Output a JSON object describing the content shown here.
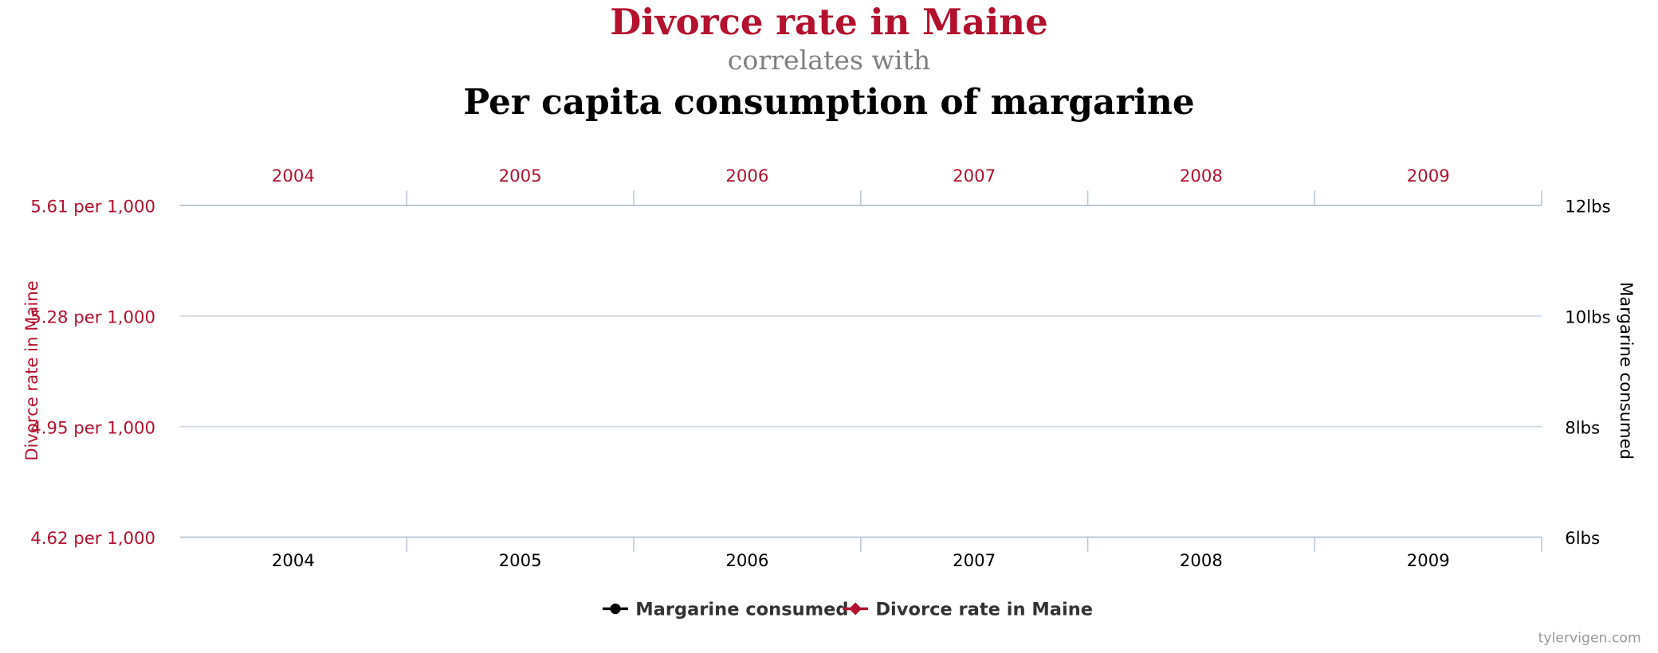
{
  "chart_data": {
    "type": "line",
    "title": "Divorce rate in Maine",
    "connector": "correlates with",
    "subtitle": "Per capita consumption of margarine",
    "ylabel": "Divorce rate in Maine",
    "y2label": "Margarine consumed",
    "source": "tylervigen.com",
    "categories": [
      "2004",
      "2005",
      "2006",
      "2007",
      "2008",
      "2009"
    ],
    "series": [
      {
        "name": "Margarine consumed",
        "color": "#000000",
        "axis": "y2",
        "marker": "circle",
        "values": [
          null,
          null,
          null,
          null,
          null,
          null
        ]
      },
      {
        "name": "Divorce rate in Maine",
        "color": "#b3112e",
        "axis": "y",
        "marker": "diamond",
        "values": [
          null,
          null,
          null,
          null,
          null,
          null
        ]
      }
    ],
    "ylim": [
      4.62,
      5.61
    ],
    "yticks": [
      {
        "value": 4.62,
        "label": "4.62 per 1,000"
      },
      {
        "value": 4.95,
        "label": "4.95 per 1,000"
      },
      {
        "value": 5.28,
        "label": "5.28 per 1,000"
      },
      {
        "value": 5.61,
        "label": "5.61 per 1,000"
      }
    ],
    "y2lim": [
      6,
      12
    ],
    "y2ticks": [
      {
        "value": 6,
        "label": "6lbs"
      },
      {
        "value": 8,
        "label": "8lbs"
      },
      {
        "value": 10,
        "label": "10lbs"
      },
      {
        "value": 12,
        "label": "12lbs"
      }
    ],
    "grid": true,
    "legend": "bottom"
  }
}
